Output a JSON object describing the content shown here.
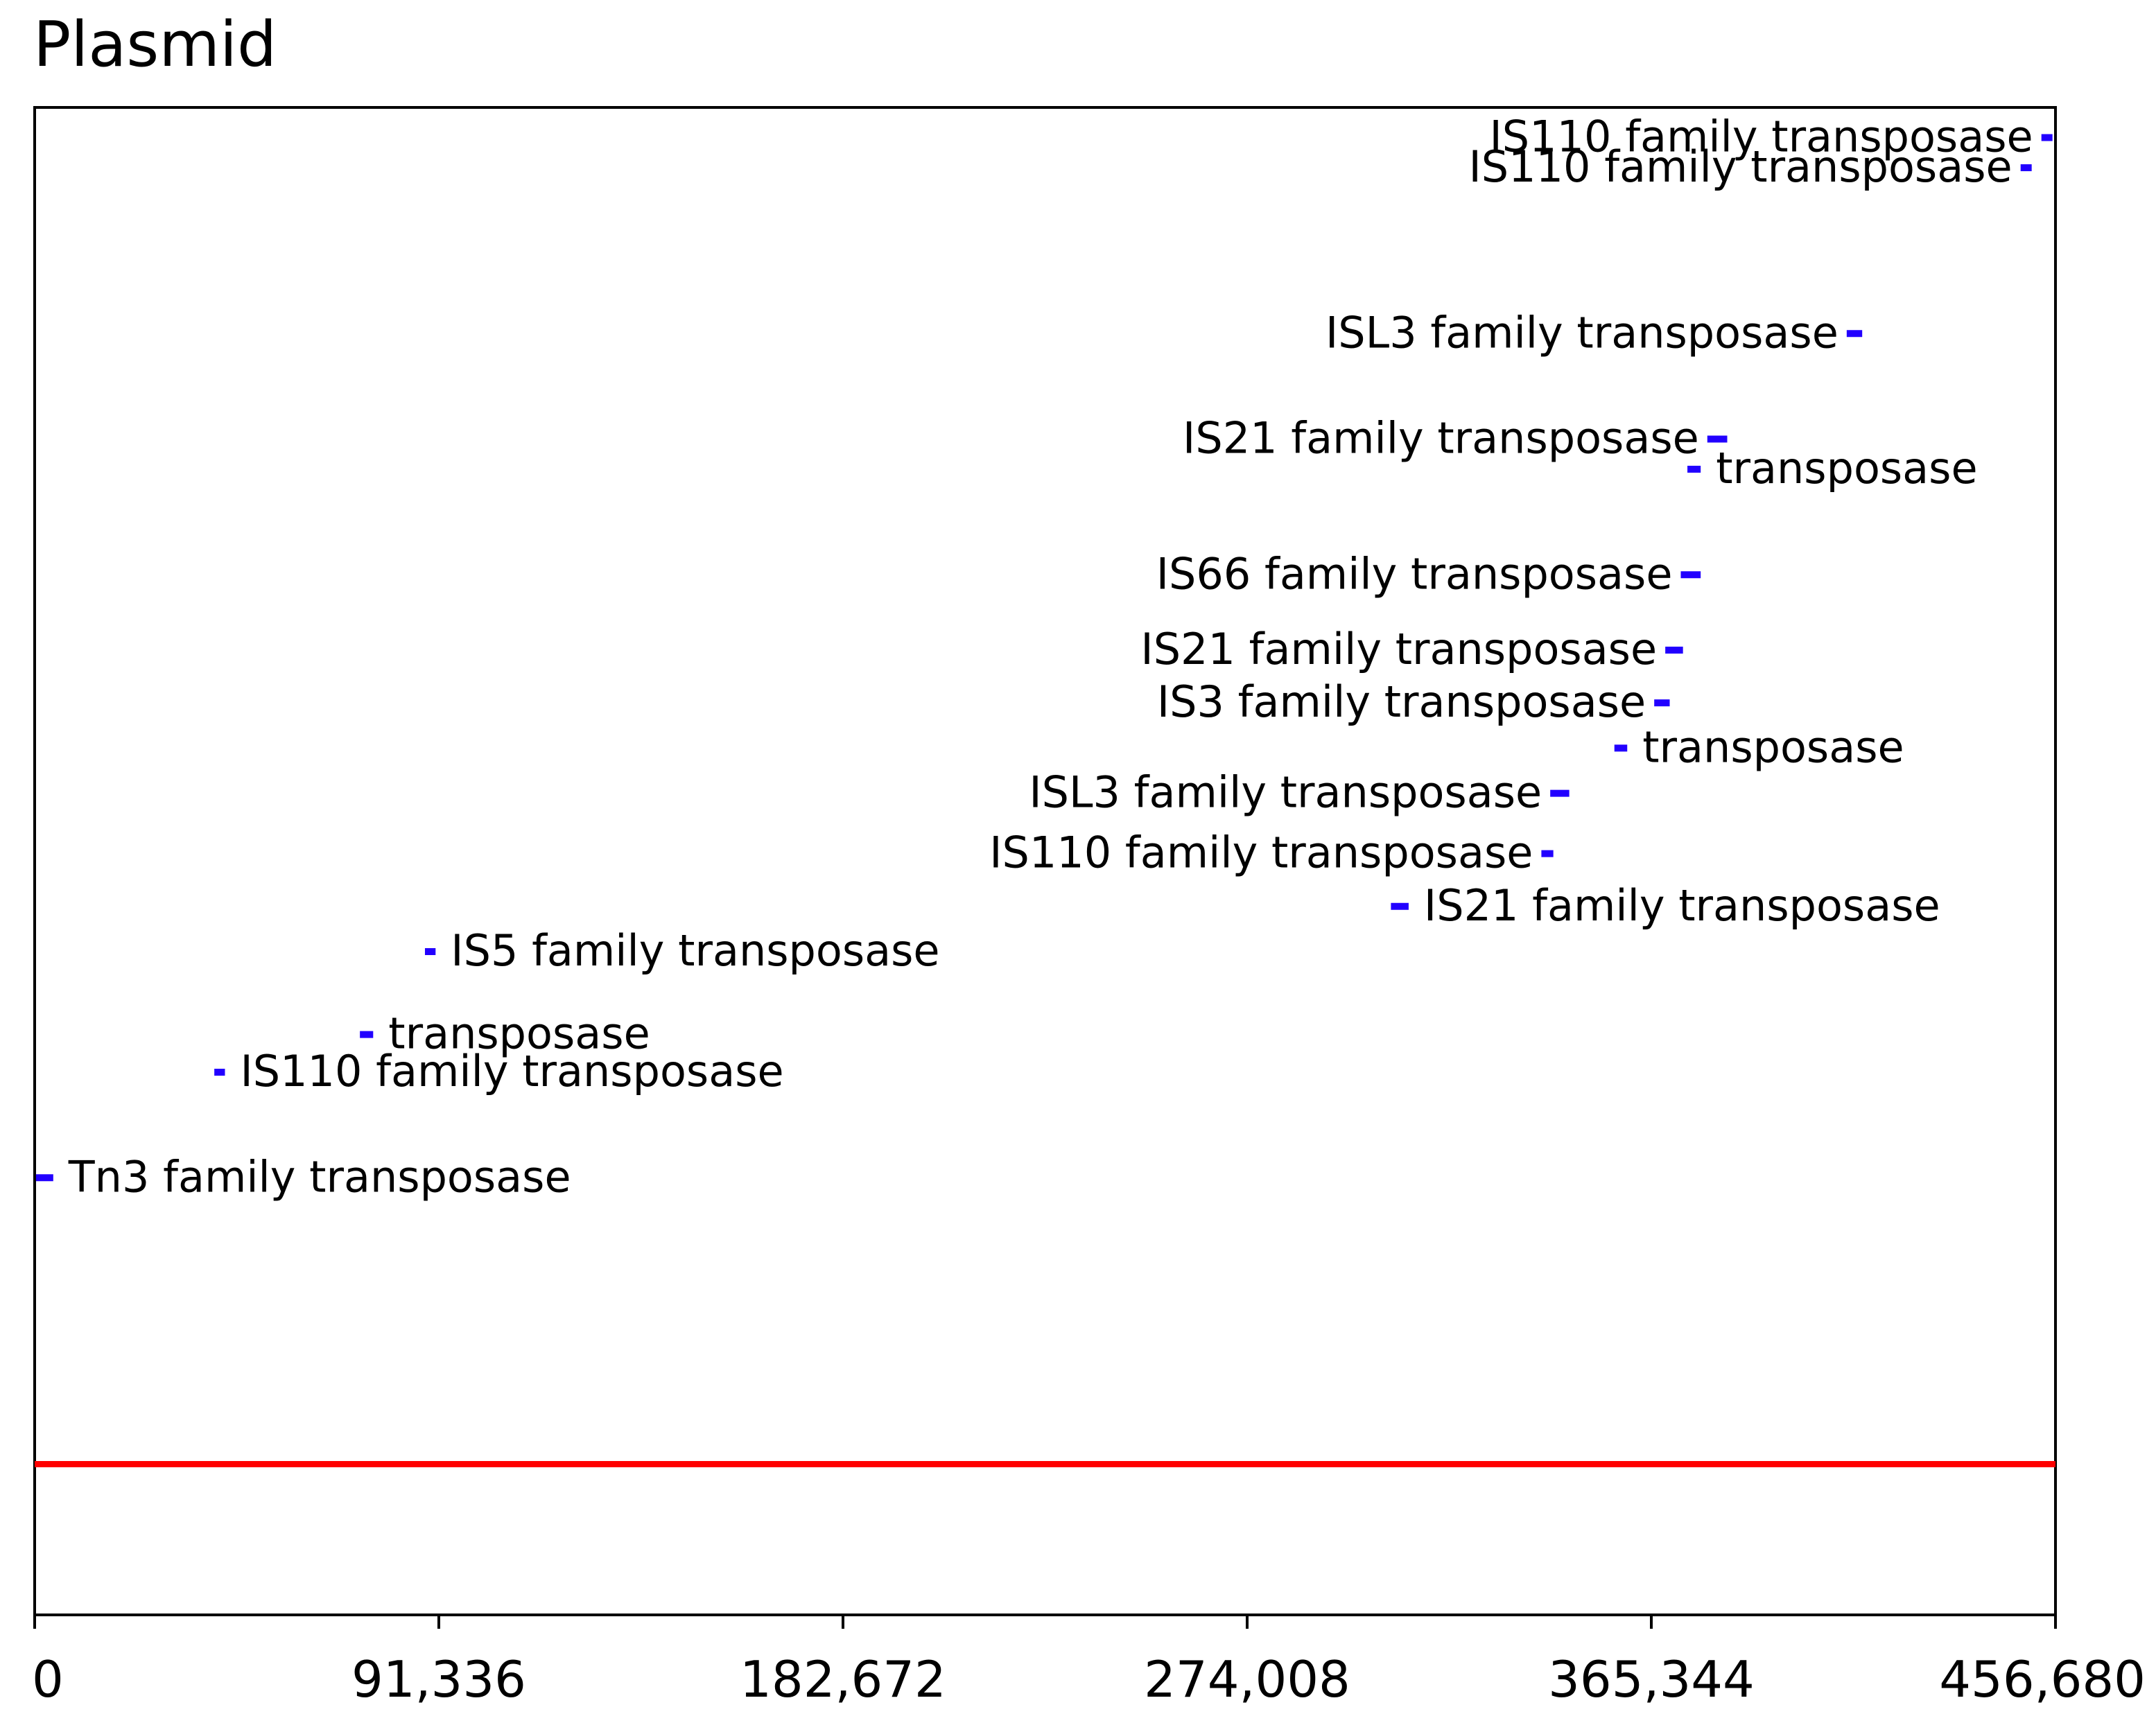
{
  "chart_data": {
    "type": "scatter",
    "title": "Plasmid",
    "xlabel": "",
    "ylabel": "",
    "xlim": [
      0,
      456680
    ],
    "ylim": [
      0,
      100
    ],
    "x_ticks": [
      0,
      91336,
      182672,
      274008,
      365344,
      456680
    ],
    "x_tick_labels": [
      "0",
      "91,336",
      "182,672",
      "274,008",
      "365,344",
      "456,680"
    ],
    "grid": false,
    "baseline": {
      "y": 10,
      "color": "#ff0000"
    },
    "marker_color": "#2200ff",
    "features": [
      {
        "label": "Tn3 family transposase",
        "start": 300,
        "end": 4200,
        "y": 29,
        "label_side": "right"
      },
      {
        "label": "IS110 family transposase",
        "start": 40600,
        "end": 43000,
        "y": 36,
        "label_side": "right"
      },
      {
        "label": "transposase",
        "start": 73500,
        "end": 76500,
        "y": 38.5,
        "label_side": "right"
      },
      {
        "label": "IS5 family transposase",
        "start": 88200,
        "end": 90600,
        "y": 44,
        "label_side": "right"
      },
      {
        "label": "IS21 family transposase",
        "start": 306500,
        "end": 310500,
        "y": 47,
        "label_side": "right"
      },
      {
        "label": "IS110 family transposase",
        "start": 340500,
        "end": 343200,
        "y": 50.5,
        "label_side": "left"
      },
      {
        "label": "ISL3 family transposase",
        "start": 342500,
        "end": 346800,
        "y": 54.5,
        "label_side": "left"
      },
      {
        "label": "transposase",
        "start": 357000,
        "end": 359900,
        "y": 57.5,
        "label_side": "right"
      },
      {
        "label": "IS3 family transposase",
        "start": 366000,
        "end": 369500,
        "y": 60.5,
        "label_side": "left"
      },
      {
        "label": "IS21 family transposase",
        "start": 368500,
        "end": 372500,
        "y": 64,
        "label_side": "left"
      },
      {
        "label": "IS66 family transposase",
        "start": 372000,
        "end": 376500,
        "y": 69,
        "label_side": "left"
      },
      {
        "label": "transposase",
        "start": 373500,
        "end": 376500,
        "y": 76,
        "label_side": "right"
      },
      {
        "label": "IS21 family transposase",
        "start": 378000,
        "end": 382500,
        "y": 78,
        "label_side": "left"
      },
      {
        "label": "ISL3 family transposase",
        "start": 409500,
        "end": 413000,
        "y": 85,
        "label_side": "left"
      },
      {
        "label": "IS110 family transposase",
        "start": 448800,
        "end": 451300,
        "y": 96,
        "label_side": "left"
      },
      {
        "label": "IS110 family transposase",
        "start": 453500,
        "end": 456000,
        "y": 98,
        "label_side": "left"
      }
    ]
  }
}
